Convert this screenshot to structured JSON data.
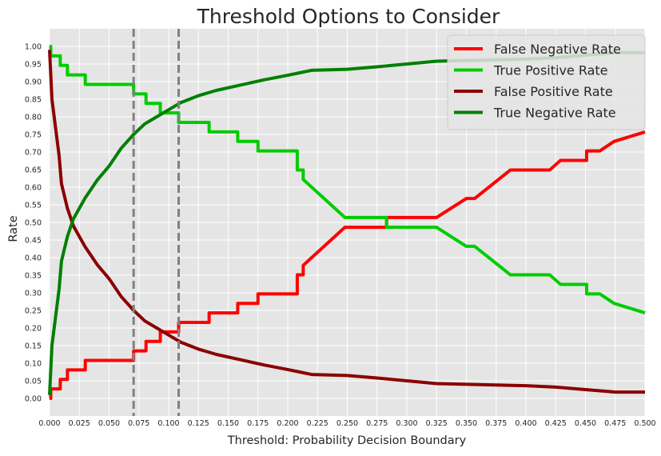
{
  "chart_data": {
    "type": "line",
    "title": "Threshold Options to Consider",
    "xlabel": "Threshold: Probability Decision Boundary",
    "ylabel": "Rate",
    "xlim": [
      0.0,
      0.5
    ],
    "ylim": [
      -0.05,
      1.05
    ],
    "x_ticks": [
      "0.000",
      "0.025",
      "0.050",
      "0.075",
      "0.100",
      "0.125",
      "0.150",
      "0.175",
      "0.200",
      "0.225",
      "0.250",
      "0.275",
      "0.300",
      "0.325",
      "0.350",
      "0.375",
      "0.400",
      "0.425",
      "0.450",
      "0.475",
      "0.500"
    ],
    "y_ticks": [
      "0.00",
      "0.05",
      "0.10",
      "0.15",
      "0.20",
      "0.25",
      "0.30",
      "0.35",
      "0.40",
      "0.45",
      "0.50",
      "0.55",
      "0.60",
      "0.65",
      "0.70",
      "0.75",
      "0.80",
      "0.85",
      "0.90",
      "0.95",
      "1.00"
    ],
    "grid": true,
    "legend_position": "top-right",
    "vertical_lines": [
      {
        "x": 0.0706,
        "style": "dashed",
        "color": "#808080"
      },
      {
        "x": 0.1084,
        "style": "dashed",
        "color": "#808080"
      }
    ],
    "series": [
      {
        "name": "False Negative Rate",
        "color": "#ff0000",
        "step": true,
        "points": [
          [
            0.0,
            0.0
          ],
          [
            0.001,
            0.027
          ],
          [
            0.008,
            0.027
          ],
          [
            0.009,
            0.054
          ],
          [
            0.014,
            0.054
          ],
          [
            0.015,
            0.081
          ],
          [
            0.029,
            0.081
          ],
          [
            0.03,
            0.108
          ],
          [
            0.0706,
            0.108
          ],
          [
            0.0706,
            0.135
          ],
          [
            0.08,
            0.135
          ],
          [
            0.081,
            0.162
          ],
          [
            0.09,
            0.162
          ],
          [
            0.093,
            0.189
          ],
          [
            0.1084,
            0.189
          ],
          [
            0.1084,
            0.216
          ],
          [
            0.133,
            0.216
          ],
          [
            0.134,
            0.243
          ],
          [
            0.157,
            0.243
          ],
          [
            0.158,
            0.27
          ],
          [
            0.174,
            0.27
          ],
          [
            0.175,
            0.297
          ],
          [
            0.207,
            0.297
          ],
          [
            0.208,
            0.351
          ],
          [
            0.211,
            0.351
          ],
          [
            0.213,
            0.378
          ],
          [
            0.248,
            0.486
          ],
          [
            0.282,
            0.486
          ],
          [
            0.283,
            0.514
          ],
          [
            0.325,
            0.514
          ],
          [
            0.35,
            0.568
          ],
          [
            0.357,
            0.568
          ],
          [
            0.387,
            0.649
          ],
          [
            0.42,
            0.649
          ],
          [
            0.429,
            0.676
          ],
          [
            0.45,
            0.676
          ],
          [
            0.451,
            0.703
          ],
          [
            0.462,
            0.703
          ],
          [
            0.474,
            0.73
          ],
          [
            0.5,
            0.757
          ]
        ]
      },
      {
        "name": "True Positive Rate",
        "color": "#00cc00",
        "step": true,
        "points": [
          [
            0.0,
            1.0
          ],
          [
            0.001,
            0.973
          ],
          [
            0.008,
            0.973
          ],
          [
            0.009,
            0.946
          ],
          [
            0.014,
            0.946
          ],
          [
            0.015,
            0.919
          ],
          [
            0.029,
            0.919
          ],
          [
            0.03,
            0.892
          ],
          [
            0.0706,
            0.892
          ],
          [
            0.0706,
            0.865
          ],
          [
            0.08,
            0.865
          ],
          [
            0.081,
            0.838
          ],
          [
            0.09,
            0.838
          ],
          [
            0.093,
            0.811
          ],
          [
            0.1084,
            0.811
          ],
          [
            0.1084,
            0.784
          ],
          [
            0.133,
            0.784
          ],
          [
            0.134,
            0.757
          ],
          [
            0.157,
            0.757
          ],
          [
            0.158,
            0.73
          ],
          [
            0.174,
            0.73
          ],
          [
            0.175,
            0.703
          ],
          [
            0.207,
            0.703
          ],
          [
            0.208,
            0.649
          ],
          [
            0.211,
            0.649
          ],
          [
            0.213,
            0.622
          ],
          [
            0.248,
            0.514
          ],
          [
            0.282,
            0.514
          ],
          [
            0.283,
            0.486
          ],
          [
            0.325,
            0.486
          ],
          [
            0.35,
            0.432
          ],
          [
            0.357,
            0.432
          ],
          [
            0.387,
            0.351
          ],
          [
            0.42,
            0.351
          ],
          [
            0.429,
            0.324
          ],
          [
            0.45,
            0.324
          ],
          [
            0.451,
            0.297
          ],
          [
            0.462,
            0.297
          ],
          [
            0.474,
            0.27
          ],
          [
            0.5,
            0.243
          ]
        ]
      },
      {
        "name": "False Positive Rate",
        "color": "#8b0000",
        "step": false,
        "points": [
          [
            0.0,
            0.99
          ],
          [
            0.002,
            0.85
          ],
          [
            0.005,
            0.77
          ],
          [
            0.008,
            0.69
          ],
          [
            0.01,
            0.61
          ],
          [
            0.015,
            0.54
          ],
          [
            0.02,
            0.49
          ],
          [
            0.03,
            0.43
          ],
          [
            0.04,
            0.38
          ],
          [
            0.05,
            0.34
          ],
          [
            0.06,
            0.29
          ],
          [
            0.0706,
            0.25
          ],
          [
            0.08,
            0.22
          ],
          [
            0.09,
            0.2
          ],
          [
            0.1,
            0.18
          ],
          [
            0.11,
            0.16
          ],
          [
            0.125,
            0.14
          ],
          [
            0.14,
            0.125
          ],
          [
            0.16,
            0.11
          ],
          [
            0.18,
            0.095
          ],
          [
            0.2,
            0.082
          ],
          [
            0.21,
            0.075
          ],
          [
            0.22,
            0.068
          ],
          [
            0.25,
            0.065
          ],
          [
            0.275,
            0.058
          ],
          [
            0.3,
            0.05
          ],
          [
            0.325,
            0.042
          ],
          [
            0.35,
            0.04
          ],
          [
            0.375,
            0.038
          ],
          [
            0.4,
            0.036
          ],
          [
            0.425,
            0.032
          ],
          [
            0.45,
            0.025
          ],
          [
            0.475,
            0.018
          ],
          [
            0.5,
            0.018
          ]
        ]
      },
      {
        "name": "True Negative Rate",
        "color": "#008000",
        "step": false,
        "points": [
          [
            0.0,
            0.01
          ],
          [
            0.002,
            0.15
          ],
          [
            0.005,
            0.23
          ],
          [
            0.008,
            0.31
          ],
          [
            0.01,
            0.39
          ],
          [
            0.015,
            0.46
          ],
          [
            0.02,
            0.51
          ],
          [
            0.03,
            0.57
          ],
          [
            0.04,
            0.62
          ],
          [
            0.05,
            0.66
          ],
          [
            0.06,
            0.71
          ],
          [
            0.0706,
            0.75
          ],
          [
            0.08,
            0.78
          ],
          [
            0.09,
            0.8
          ],
          [
            0.1,
            0.82
          ],
          [
            0.11,
            0.84
          ],
          [
            0.125,
            0.86
          ],
          [
            0.14,
            0.875
          ],
          [
            0.16,
            0.89
          ],
          [
            0.18,
            0.905
          ],
          [
            0.2,
            0.918
          ],
          [
            0.21,
            0.925
          ],
          [
            0.22,
            0.932
          ],
          [
            0.25,
            0.935
          ],
          [
            0.275,
            0.942
          ],
          [
            0.3,
            0.95
          ],
          [
            0.325,
            0.958
          ],
          [
            0.35,
            0.96
          ],
          [
            0.375,
            0.962
          ],
          [
            0.4,
            0.964
          ],
          [
            0.425,
            0.968
          ],
          [
            0.45,
            0.975
          ],
          [
            0.475,
            0.982
          ],
          [
            0.5,
            0.982
          ]
        ]
      }
    ]
  }
}
